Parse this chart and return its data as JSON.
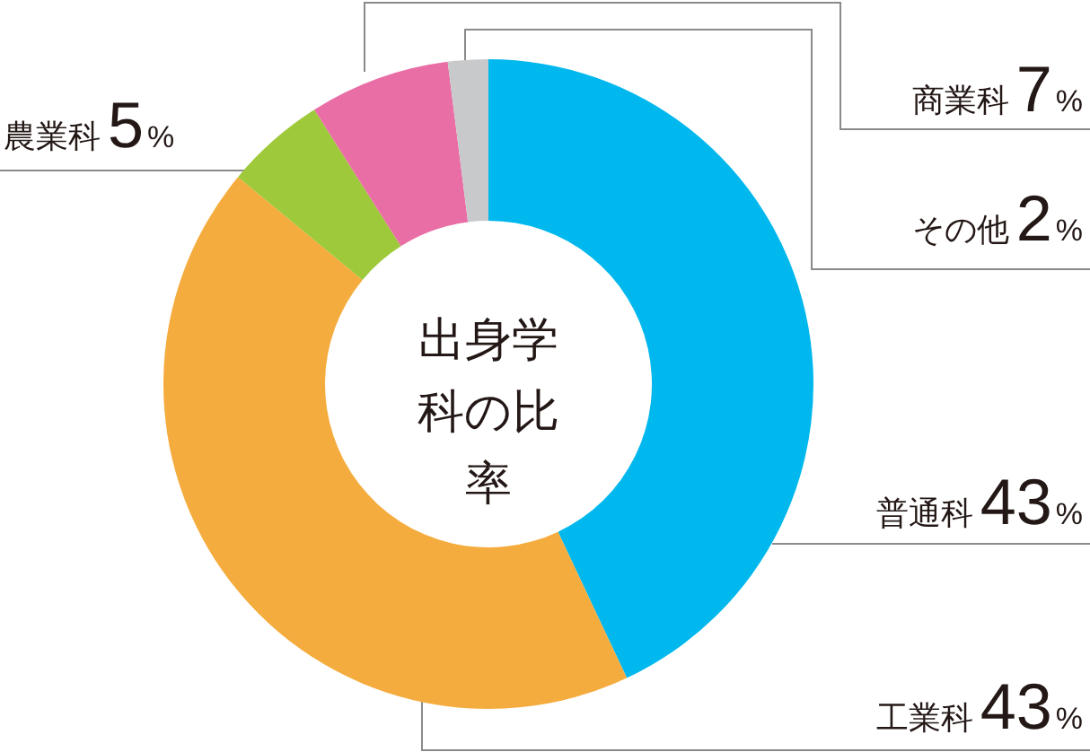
{
  "chart_data": {
    "type": "donut",
    "title": "出身学科の比率",
    "categories": [
      "普通科",
      "工業科",
      "農業科",
      "商業科",
      "その他"
    ],
    "values": [
      43,
      43,
      5,
      7,
      2
    ],
    "colors": [
      "#00b8ee",
      "#f5ac3e",
      "#9dc93a",
      "#e96ea5",
      "#c8c9cb"
    ],
    "value_labels": [
      "43%",
      "43%",
      "5%",
      "7%",
      "2%"
    ]
  }
}
